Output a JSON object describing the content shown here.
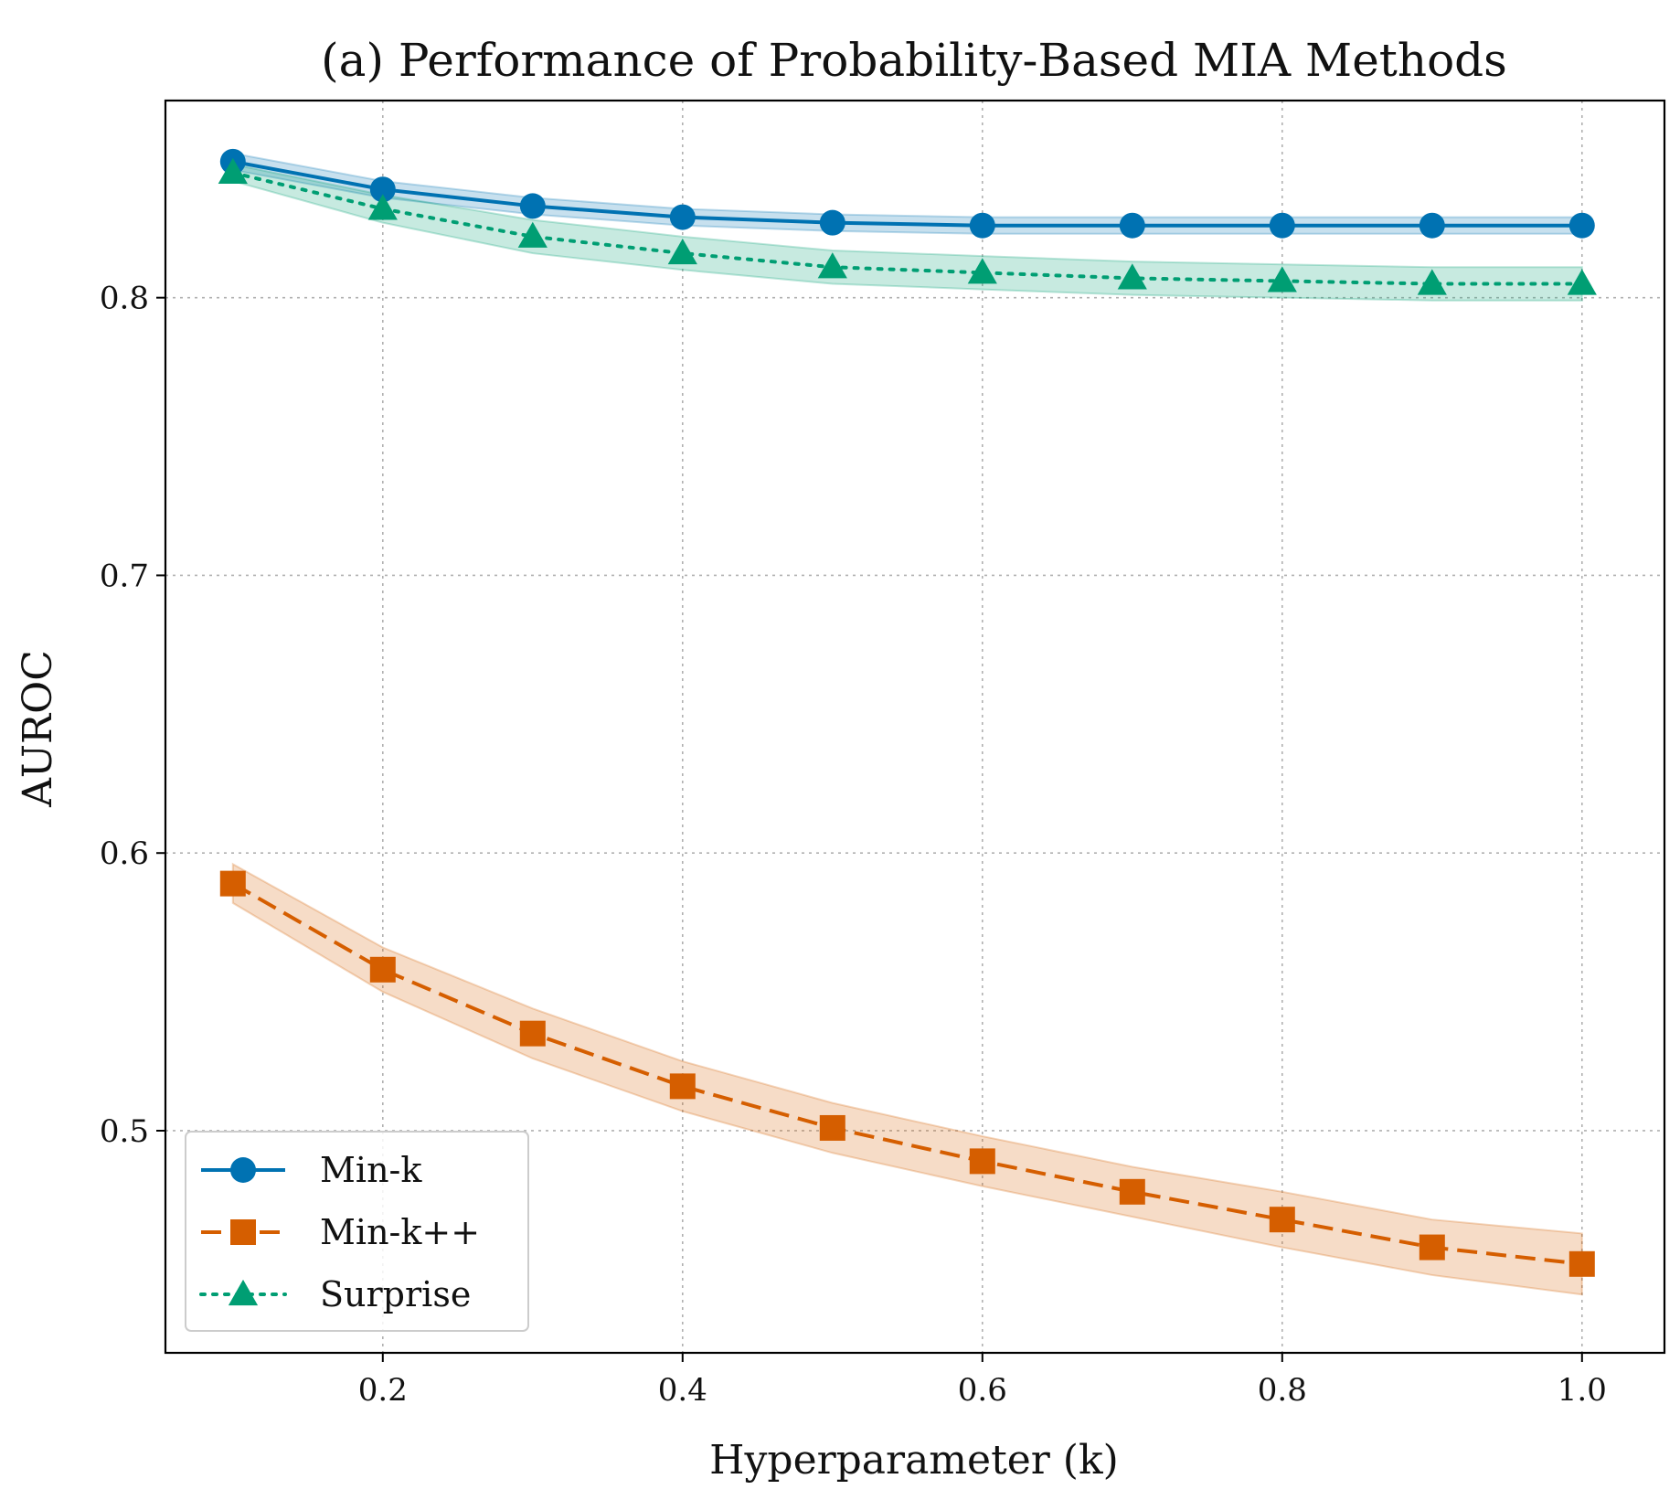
{
  "chart_data": {
    "type": "line",
    "title": "(a) Performance of Probability-Based MIA Methods",
    "xlabel": "Hyperparameter (k)",
    "ylabel": "AUROC",
    "xlim": [
      0.055,
      1.055
    ],
    "ylim": [
      0.42,
      0.871
    ],
    "x_ticks": [
      0.2,
      0.4,
      0.6,
      0.8,
      1.0
    ],
    "x_tick_labels": [
      "0.2",
      "0.4",
      "0.6",
      "0.8",
      "1.0"
    ],
    "y_ticks": [
      0.5,
      0.6,
      0.7,
      0.8
    ],
    "y_tick_labels": [
      "0.5",
      "0.6",
      "0.7",
      "0.8"
    ],
    "grid": true,
    "legend_position": "bottom-left",
    "x": [
      0.1,
      0.2,
      0.3,
      0.4,
      0.5,
      0.6,
      0.7,
      0.8,
      0.9,
      1.0
    ],
    "series": [
      {
        "name": "Min-k",
        "color": "#0072b2",
        "linestyle": "solid",
        "marker": "circle",
        "values": [
          0.849,
          0.839,
          0.833,
          0.829,
          0.827,
          0.826,
          0.826,
          0.826,
          0.826,
          0.826
        ],
        "band_lower": [
          0.846,
          0.836,
          0.83,
          0.826,
          0.824,
          0.823,
          0.823,
          0.823,
          0.823,
          0.823
        ],
        "band_upper": [
          0.852,
          0.842,
          0.836,
          0.832,
          0.83,
          0.829,
          0.829,
          0.829,
          0.829,
          0.829
        ]
      },
      {
        "name": "Min-k++",
        "color": "#d55e00",
        "linestyle": "dashed",
        "marker": "square",
        "values": [
          0.589,
          0.558,
          0.535,
          0.516,
          0.501,
          0.489,
          0.478,
          0.468,
          0.458,
          0.452
        ],
        "band_lower": [
          0.582,
          0.55,
          0.526,
          0.507,
          0.492,
          0.48,
          0.469,
          0.458,
          0.448,
          0.441
        ],
        "band_upper": [
          0.596,
          0.566,
          0.544,
          0.525,
          0.51,
          0.498,
          0.487,
          0.478,
          0.468,
          0.463
        ]
      },
      {
        "name": "Surprise",
        "color": "#009e73",
        "linestyle": "dotted",
        "marker": "triangle",
        "values": [
          0.845,
          0.832,
          0.822,
          0.816,
          0.811,
          0.809,
          0.807,
          0.806,
          0.805,
          0.805
        ],
        "band_lower": [
          0.842,
          0.827,
          0.816,
          0.81,
          0.805,
          0.803,
          0.801,
          0.8,
          0.799,
          0.799
        ],
        "band_upper": [
          0.848,
          0.837,
          0.828,
          0.822,
          0.817,
          0.815,
          0.813,
          0.812,
          0.811,
          0.811
        ]
      }
    ]
  }
}
